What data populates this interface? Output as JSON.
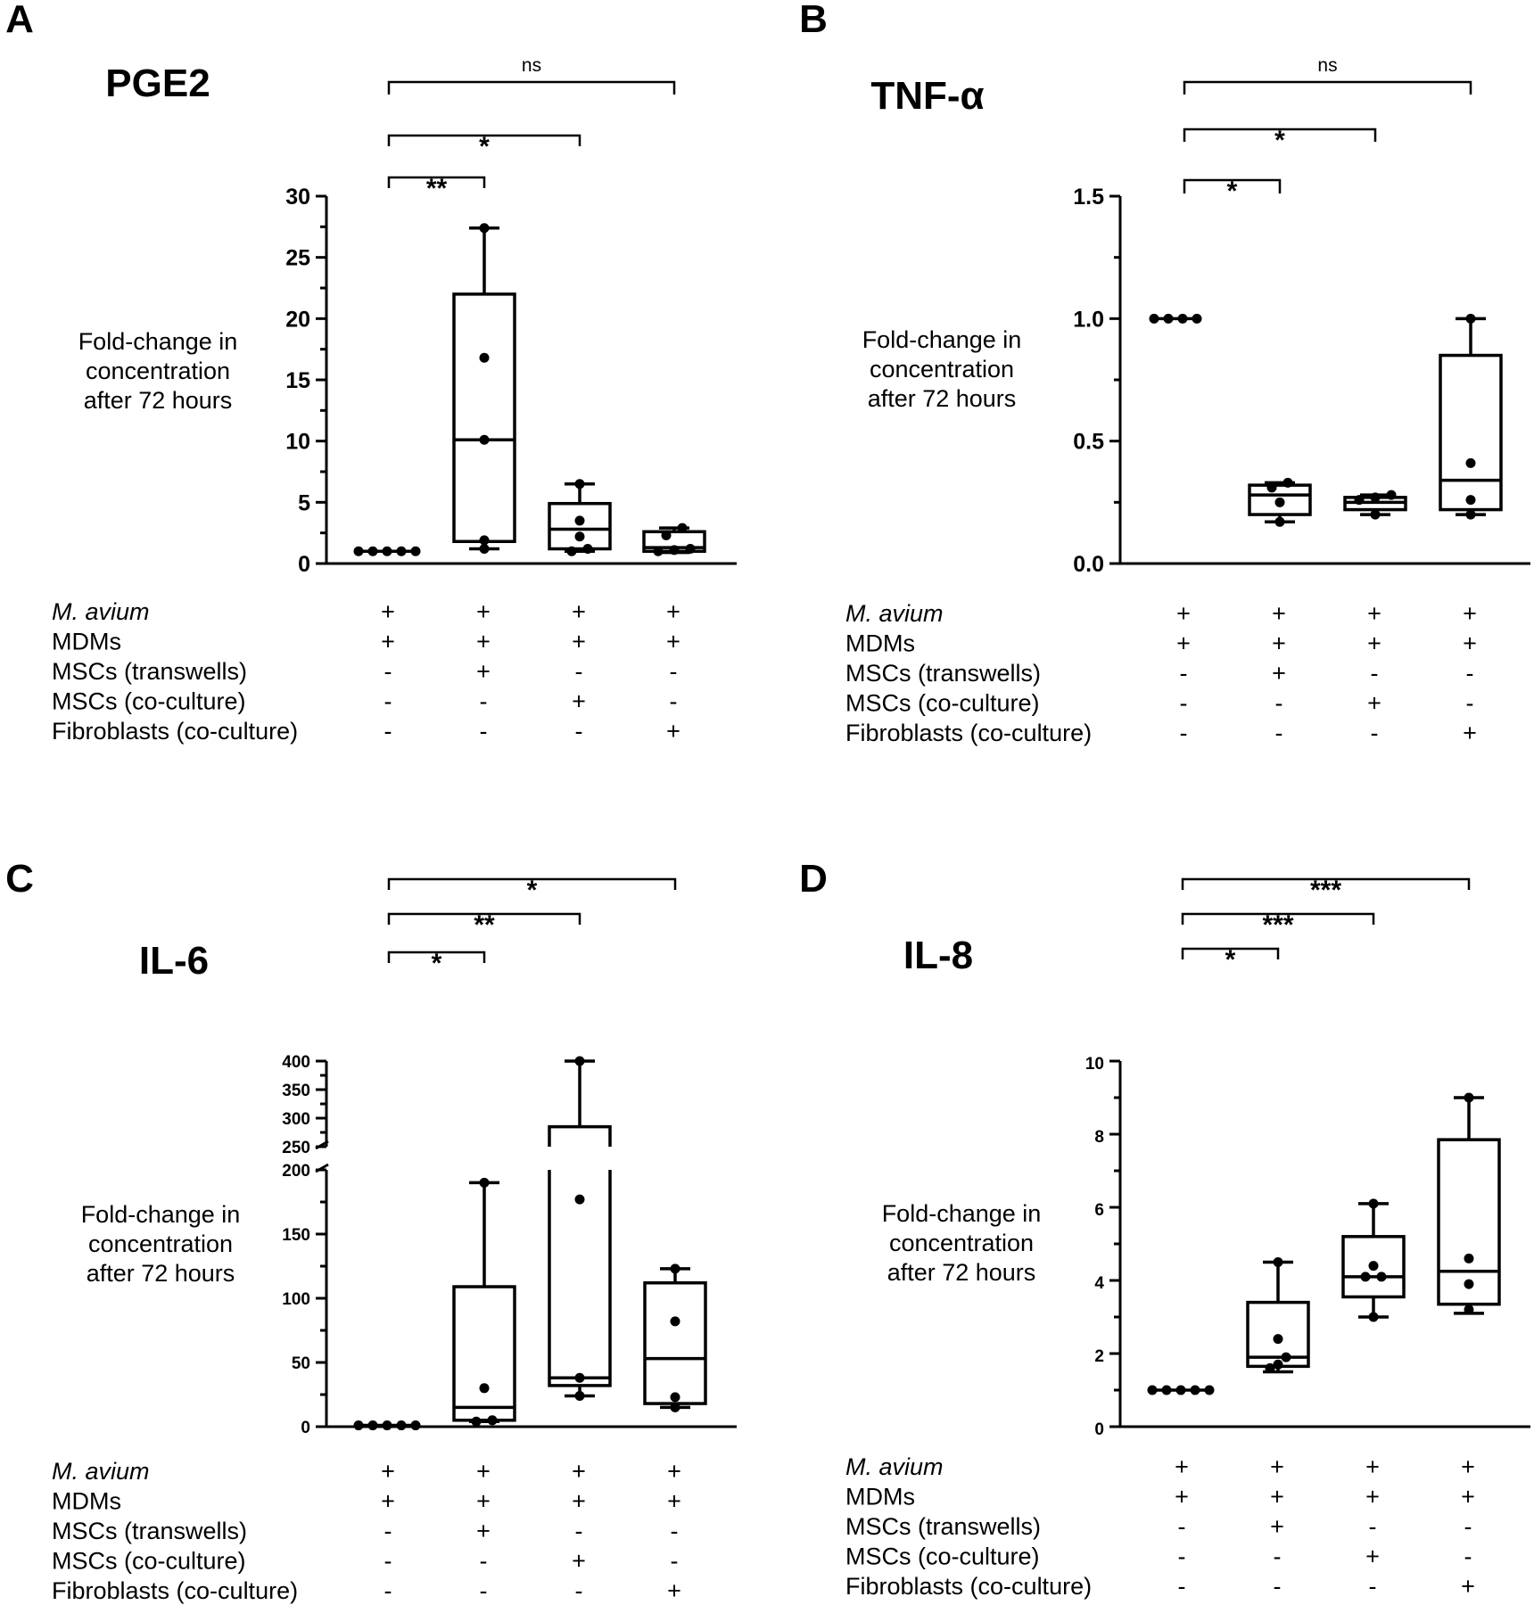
{
  "chart_data": [
    {
      "type": "box",
      "panel_label": "A",
      "title": "PGE2",
      "ylabel": [
        "Fold-change in",
        "concentration",
        "after 72 hours"
      ],
      "ylim": [
        0,
        30
      ],
      "yticks": [
        "0",
        "5",
        "10",
        "15",
        "20",
        "25",
        "30"
      ],
      "groups": [
        {
          "points": [
            1,
            1,
            1,
            1,
            1
          ]
        },
        {
          "whisker_low": 1.2,
          "q1": 1.8,
          "median": 10.1,
          "q3": 22,
          "whisker_high": 27.4,
          "points": [
            1.2,
            1.9,
            10.1,
            16.8,
            27.4
          ]
        },
        {
          "whisker_low": 1.0,
          "q1": 1.2,
          "median": 2.8,
          "q3": 4.9,
          "whisker_high": 6.5,
          "points": [
            1.0,
            1.2,
            2.2,
            3.5,
            6.5
          ]
        },
        {
          "whisker_low": 0.9,
          "q1": 1.0,
          "median": 1.3,
          "q3": 2.6,
          "whisker_high": 2.9,
          "points": [
            1.0,
            1.1,
            1.2,
            2.3,
            2.9
          ]
        }
      ],
      "comparisons": [
        {
          "from": 1,
          "to": 2,
          "label": "**"
        },
        {
          "from": 1,
          "to": 3,
          "label": "*"
        },
        {
          "from": 1,
          "to": 4,
          "label": "ns"
        }
      ],
      "conditions": [
        {
          "label": "M. avium",
          "italic": true,
          "marks": [
            "+",
            "+",
            "+",
            "+"
          ]
        },
        {
          "label": "MDMs",
          "italic": false,
          "marks": [
            "+",
            "+",
            "+",
            "+"
          ]
        },
        {
          "label": "MSCs (transwells)",
          "italic": false,
          "marks": [
            "-",
            "+",
            "-",
            "-"
          ]
        },
        {
          "label": "MSCs (co-culture)",
          "italic": false,
          "marks": [
            "-",
            "-",
            "+",
            "-"
          ]
        },
        {
          "label": "Fibroblasts (co-culture)",
          "italic": false,
          "marks": [
            "-",
            "-",
            "-",
            "+"
          ]
        }
      ]
    },
    {
      "type": "box",
      "panel_label": "B",
      "title": "TNF-α",
      "ylabel": [
        "Fold-change in",
        "concentration",
        "after 72 hours"
      ],
      "ylim": [
        0,
        1.5
      ],
      "yticks": [
        "0.0",
        "0.5",
        "1.0",
        "1.5"
      ],
      "groups": [
        {
          "points": [
            1,
            1,
            1,
            1
          ]
        },
        {
          "whisker_low": 0.17,
          "q1": 0.2,
          "median": 0.28,
          "q3": 0.32,
          "whisker_high": 0.33,
          "points": [
            0.17,
            0.25,
            0.31,
            0.33
          ]
        },
        {
          "whisker_low": 0.2,
          "q1": 0.22,
          "median": 0.25,
          "q3": 0.27,
          "whisker_high": 0.28,
          "points": [
            0.2,
            0.26,
            0.27,
            0.28
          ]
        },
        {
          "whisker_low": 0.2,
          "q1": 0.22,
          "median": 0.34,
          "q3": 0.85,
          "whisker_high": 1.0,
          "points": [
            0.2,
            0.26,
            0.41,
            1.0
          ]
        }
      ],
      "comparisons": [
        {
          "from": 1,
          "to": 2,
          "label": "*"
        },
        {
          "from": 1,
          "to": 3,
          "label": "*"
        },
        {
          "from": 1,
          "to": 4,
          "label": "ns"
        }
      ],
      "conditions": [
        {
          "label": "M. avium",
          "italic": true,
          "marks": [
            "+",
            "+",
            "+",
            "+"
          ]
        },
        {
          "label": "MDMs",
          "italic": false,
          "marks": [
            "+",
            "+",
            "+",
            "+"
          ]
        },
        {
          "label": "MSCs (transwells)",
          "italic": false,
          "marks": [
            "-",
            "+",
            "-",
            "-"
          ]
        },
        {
          "label": "MSCs (co-culture)",
          "italic": false,
          "marks": [
            "-",
            "-",
            "+",
            "-"
          ]
        },
        {
          "label": "Fibroblasts (co-culture)",
          "italic": false,
          "marks": [
            "-",
            "-",
            "-",
            "+"
          ]
        }
      ]
    },
    {
      "type": "box",
      "panel_label": "C",
      "title": "IL-6",
      "ylabel": [
        "Fold-change in",
        "concentration",
        "after 72 hours"
      ],
      "axis_break": {
        "lower": [
          0,
          200
        ],
        "upper": [
          250,
          400
        ]
      },
      "yticks_lower": [
        "0",
        "50",
        "100",
        "150",
        "200"
      ],
      "yticks_upper": [
        "250",
        "300",
        "350",
        "400"
      ],
      "groups": [
        {
          "points": [
            1,
            1,
            1,
            1,
            1
          ]
        },
        {
          "whisker_low": 4,
          "q1": 5,
          "median": 15,
          "q3": 109,
          "whisker_high": 190,
          "points": [
            4,
            5,
            30,
            190
          ]
        },
        {
          "whisker_low": 24,
          "q1": 32,
          "median": 38,
          "q3": 285,
          "whisker_high": 400,
          "points": [
            24,
            38,
            177,
            400
          ]
        },
        {
          "whisker_low": 15,
          "q1": 18,
          "median": 53,
          "q3": 112,
          "whisker_high": 123,
          "points": [
            15,
            23,
            82,
            123
          ]
        }
      ],
      "comparisons": [
        {
          "from": 1,
          "to": 2,
          "label": "*"
        },
        {
          "from": 1,
          "to": 3,
          "label": "**"
        },
        {
          "from": 1,
          "to": 4,
          "label": "*"
        }
      ],
      "conditions": [
        {
          "label": "M. avium",
          "italic": true,
          "marks": [
            "+",
            "+",
            "+",
            "+"
          ]
        },
        {
          "label": "MDMs",
          "italic": false,
          "marks": [
            "+",
            "+",
            "+",
            "+"
          ]
        },
        {
          "label": "MSCs (transwells)",
          "italic": false,
          "marks": [
            "-",
            "+",
            "-",
            "-"
          ]
        },
        {
          "label": "MSCs (co-culture)",
          "italic": false,
          "marks": [
            "-",
            "-",
            "+",
            "-"
          ]
        },
        {
          "label": "Fibroblasts (co-culture)",
          "italic": false,
          "marks": [
            "-",
            "-",
            "-",
            "+"
          ]
        }
      ]
    },
    {
      "type": "box",
      "panel_label": "D",
      "title": "IL-8",
      "ylabel": [
        "Fold-change in",
        "concentration",
        "after 72 hours"
      ],
      "ylim": [
        0,
        10
      ],
      "yticks": [
        "0",
        "2",
        "4",
        "6",
        "8",
        "10"
      ],
      "groups": [
        {
          "points": [
            1,
            1,
            1,
            1,
            1
          ]
        },
        {
          "whisker_low": 1.5,
          "q1": 1.65,
          "median": 1.9,
          "q3": 3.4,
          "whisker_high": 4.5,
          "points": [
            1.6,
            1.7,
            1.9,
            2.4,
            4.5
          ]
        },
        {
          "whisker_low": 3.0,
          "q1": 3.55,
          "median": 4.1,
          "q3": 5.2,
          "whisker_high": 6.1,
          "points": [
            3.0,
            4.1,
            4.1,
            4.4,
            6.1
          ]
        },
        {
          "whisker_low": 3.1,
          "q1": 3.35,
          "median": 4.25,
          "q3": 7.85,
          "whisker_high": 9.0,
          "points": [
            3.2,
            3.9,
            4.6,
            9.0
          ]
        }
      ],
      "comparisons": [
        {
          "from": 1,
          "to": 2,
          "label": "*"
        },
        {
          "from": 1,
          "to": 3,
          "label": "***"
        },
        {
          "from": 1,
          "to": 4,
          "label": "***"
        }
      ],
      "conditions": [
        {
          "label": "M. avium",
          "italic": true,
          "marks": [
            "+",
            "+",
            "+",
            "+"
          ]
        },
        {
          "label": "MDMs",
          "italic": false,
          "marks": [
            "+",
            "+",
            "+",
            "+"
          ]
        },
        {
          "label": "MSCs (transwells)",
          "italic": false,
          "marks": [
            "-",
            "+",
            "-",
            "-"
          ]
        },
        {
          "label": "MSCs (co-culture)",
          "italic": false,
          "marks": [
            "-",
            "-",
            "+",
            "-"
          ]
        },
        {
          "label": "Fibroblasts (co-culture)",
          "italic": false,
          "marks": [
            "-",
            "-",
            "-",
            "+"
          ]
        }
      ]
    }
  ]
}
